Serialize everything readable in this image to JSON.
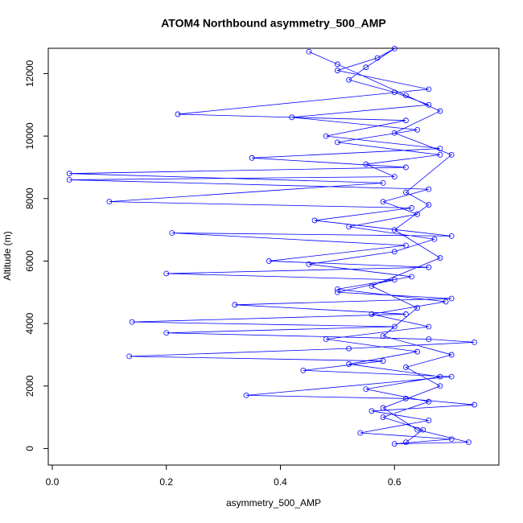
{
  "chart_data": {
    "type": "line",
    "title": "ATOM4 Northbound asymmetry_500_AMP",
    "xlabel": "asymmetry_500_AMP",
    "ylabel": "Altitude (m)",
    "color": "blue",
    "marker": "circle",
    "xlim": [
      -0.007,
      0.783
    ],
    "ylim": [
      -530,
      12810
    ],
    "xticks": [
      {
        "value": 0,
        "label": "0.0"
      },
      0.2,
      0.4,
      0.6
    ],
    "yticks": [
      0,
      2000,
      4000,
      6000,
      8000,
      10000,
      12000
    ],
    "x": [
      0.62,
      0.65,
      0.58,
      0.66,
      0.55,
      0.68,
      0.52,
      0.64,
      0.48,
      0.66,
      0.56,
      0.69,
      0.5,
      0.63,
      0.45,
      0.6,
      0.67,
      0.52,
      0.64,
      0.58,
      0.66,
      0.03,
      0.6,
      0.55,
      0.68,
      0.5,
      0.64,
      0.42,
      0.66,
      0.6,
      0.52,
      0.55,
      0.6,
      0.57,
      0.5,
      0.66,
      0.22,
      0.62,
      0.48,
      0.68,
      0.35,
      0.62,
      0.03,
      0.58,
      0.1,
      0.63,
      0.46,
      0.7,
      0.21,
      0.62,
      0.38,
      0.66,
      0.2,
      0.6,
      0.5,
      0.7,
      0.32,
      0.62,
      0.14,
      0.6,
      0.2,
      0.66,
      0.74,
      0.52,
      0.135,
      0.58,
      0.44,
      0.7,
      0.34,
      0.62,
      0.74,
      0.56,
      0.66,
      0.54,
      0.7,
      0.6,
      0.73,
      0.64,
      0.58,
      0.68,
      0.62,
      0.7,
      0.58,
      0.64,
      0.56,
      0.68,
      0.6,
      0.66,
      0.62,
      0.7,
      0.6,
      0.68,
      0.62,
      0.5,
      0.45
    ],
    "values": [
      200,
      600,
      1000,
      1500,
      1900,
      2300,
      2700,
      3100,
      3500,
      3900,
      4300,
      4700,
      5100,
      5500,
      5900,
      6300,
      6700,
      7100,
      7500,
      7900,
      8300,
      8600,
      8700,
      9100,
      9400,
      9800,
      10200,
      10600,
      11000,
      11400,
      11800,
      12200,
      12800,
      12500,
      12100,
      11500,
      10700,
      10500,
      10000,
      9600,
      9300,
      9000,
      8800,
      8500,
      7900,
      7700,
      7300,
      6800,
      6900,
      6500,
      6000,
      5800,
      5600,
      5400,
      5000,
      4800,
      4600,
      4300,
      4050,
      3900,
      3700,
      3500,
      3400,
      3200,
      2950,
      2800,
      2500,
      2300,
      1700,
      1600,
      1400,
      1200,
      900,
      500,
      300,
      150,
      200,
      600,
      1300,
      2000,
      2600,
      3000,
      3600,
      4500,
      5200,
      6100,
      7000,
      7800,
      8200,
      9400,
      10100,
      10800,
      11300,
      12300,
      12700
    ]
  }
}
